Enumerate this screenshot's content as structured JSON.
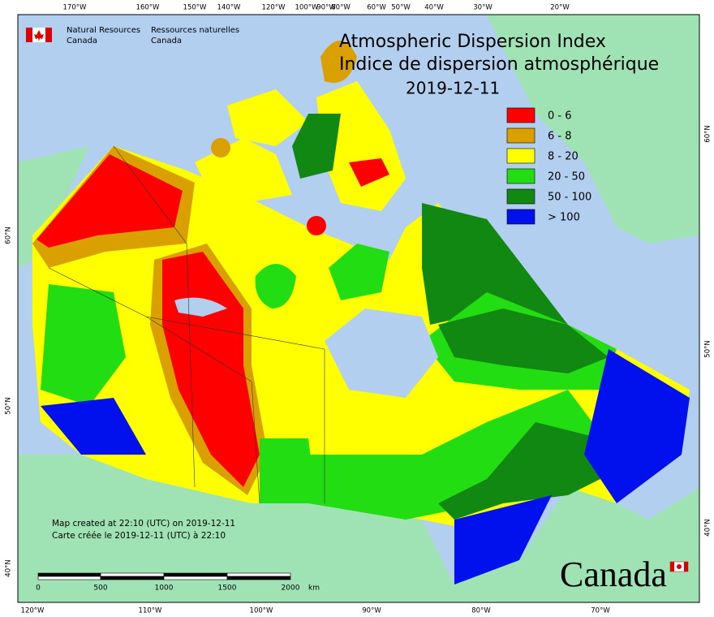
{
  "header": {
    "agency_en": [
      "Natural Resources",
      "Canada"
    ],
    "agency_fr": [
      "Ressources naturelles",
      "Canada"
    ]
  },
  "title": [
    "Atmospheric Dispersion Index",
    "Indice de dispersion atmosphérique"
  ],
  "date": "2019-12-11",
  "legend": [
    {
      "label": "0 - 6",
      "color": "#ff0000"
    },
    {
      "label": "6 - 8",
      "color": "#d9a000"
    },
    {
      "label": "8 - 20",
      "color": "#ffff00"
    },
    {
      "label": "20 - 50",
      "color": "#22dd11"
    },
    {
      "label": "50 - 100",
      "color": "#118811"
    },
    {
      "label": "> 100",
      "color": "#0011ee"
    }
  ],
  "graticule": {
    "top": [
      "170°W",
      "160°W",
      "150°W",
      "140°W",
      "120°W",
      "100°W",
      "90°W",
      "80°W",
      "60°W",
      "50°W",
      "40°W",
      "30°W",
      "20°W"
    ],
    "bottom": [
      "120°W",
      "110°W",
      "100°W",
      "90°W",
      "80°W",
      "70°W"
    ],
    "left": [
      "60°N",
      "50°N",
      "40°N"
    ],
    "right": [
      "60°N",
      "50°N",
      "40°N"
    ]
  },
  "scale_bar": {
    "labels": [
      "0",
      "500",
      "1000",
      "1500",
      "2000"
    ],
    "unit": "km"
  },
  "credits": [
    "Map created at 22:10 (UTC) on 2019-12-11",
    "Carte créée le 2019-12-11 (UTC) à 22:10"
  ],
  "wordmark": "Canada"
}
